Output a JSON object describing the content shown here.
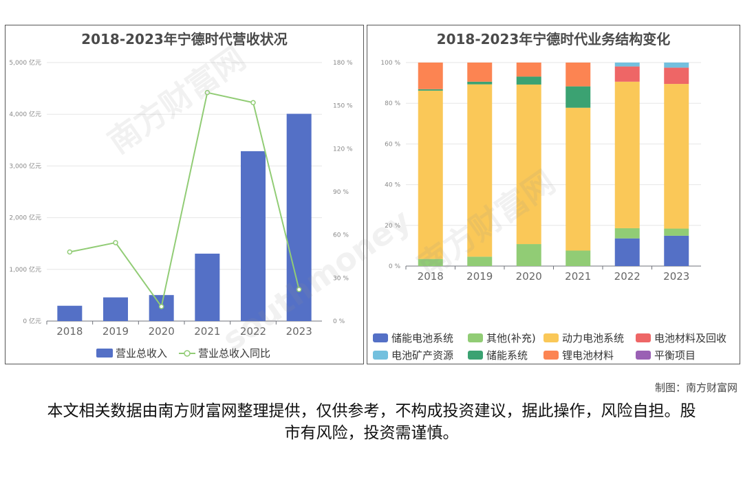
{
  "credit": "制图：南方财富网",
  "disclaimer": "本文相关数据由南方财富网整理提供，仅供参考，不构成投资建议，据此操作，风险自担。股市有风险，投资需谨慎。",
  "chart_data": [
    {
      "type": "bar",
      "title": "2018-2023年宁德时代营收状况",
      "categories": [
        "2018",
        "2019",
        "2020",
        "2021",
        "2022",
        "2023"
      ],
      "series": [
        {
          "name": "营业总收入",
          "type": "bar",
          "axis": "left",
          "color": "#5470c6",
          "values": [
            296,
            458,
            503,
            1304,
            3286,
            4009
          ]
        },
        {
          "name": "营业总收入同比",
          "type": "line",
          "axis": "right",
          "color": "#91cc75",
          "values": [
            48.1,
            54.6,
            10.1,
            159.1,
            152.1,
            22.0
          ]
        }
      ],
      "left_axis": {
        "ylim": [
          0,
          5000
        ],
        "ticks": [
          "0 亿元",
          "1,000 亿元",
          "2,000 亿元",
          "3,000 亿元",
          "4,000 亿元",
          "5,000 亿元"
        ]
      },
      "right_axis": {
        "ylim": [
          0,
          180
        ],
        "ticks": [
          "0 %",
          "30 %",
          "60 %",
          "90 %",
          "120 %",
          "150 %",
          "180 %"
        ]
      },
      "grid": true,
      "legend": "bottom"
    },
    {
      "type": "bar",
      "stacked": true,
      "title": "2018-2023年宁德时代业务结构变化",
      "categories": [
        "2018",
        "2019",
        "2020",
        "2021",
        "2022",
        "2023"
      ],
      "y_ticks": [
        "0 %",
        "20 %",
        "40 %",
        "60 %",
        "80 %",
        "100 %"
      ],
      "ylim": [
        0,
        100
      ],
      "grid": true,
      "legend": "bottom",
      "series": [
        {
          "name": "储能电池系统",
          "color": "#5470c6",
          "values": [
            0,
            0,
            0,
            0,
            13.6,
            14.9
          ]
        },
        {
          "name": "其他(补充)",
          "color": "#91cc75",
          "values": [
            3.5,
            4.6,
            10.8,
            7.6,
            5.0,
            3.5
          ]
        },
        {
          "name": "动力电池系统",
          "color": "#fac858",
          "values": [
            82.7,
            84.7,
            78.4,
            70.2,
            72.0,
            71.1
          ]
        },
        {
          "name": "电池材料及回收",
          "color": "#ee6666",
          "values": [
            0,
            0,
            0,
            0,
            7.5,
            8.0
          ]
        },
        {
          "name": "电池矿产资源",
          "color": "#73c0de",
          "values": [
            0,
            0,
            0,
            0,
            1.9,
            2.5
          ]
        },
        {
          "name": "储能系统",
          "color": "#3ba272",
          "values": [
            0.7,
            1.3,
            3.9,
            10.5,
            0,
            0
          ]
        },
        {
          "name": "锂电池材料",
          "color": "#fc8452",
          "values": [
            13.1,
            9.4,
            6.9,
            11.7,
            0,
            0
          ]
        },
        {
          "name": "平衡项目",
          "color": "#9a60b4",
          "values": [
            0,
            0,
            0,
            0,
            0,
            0
          ]
        }
      ]
    }
  ]
}
